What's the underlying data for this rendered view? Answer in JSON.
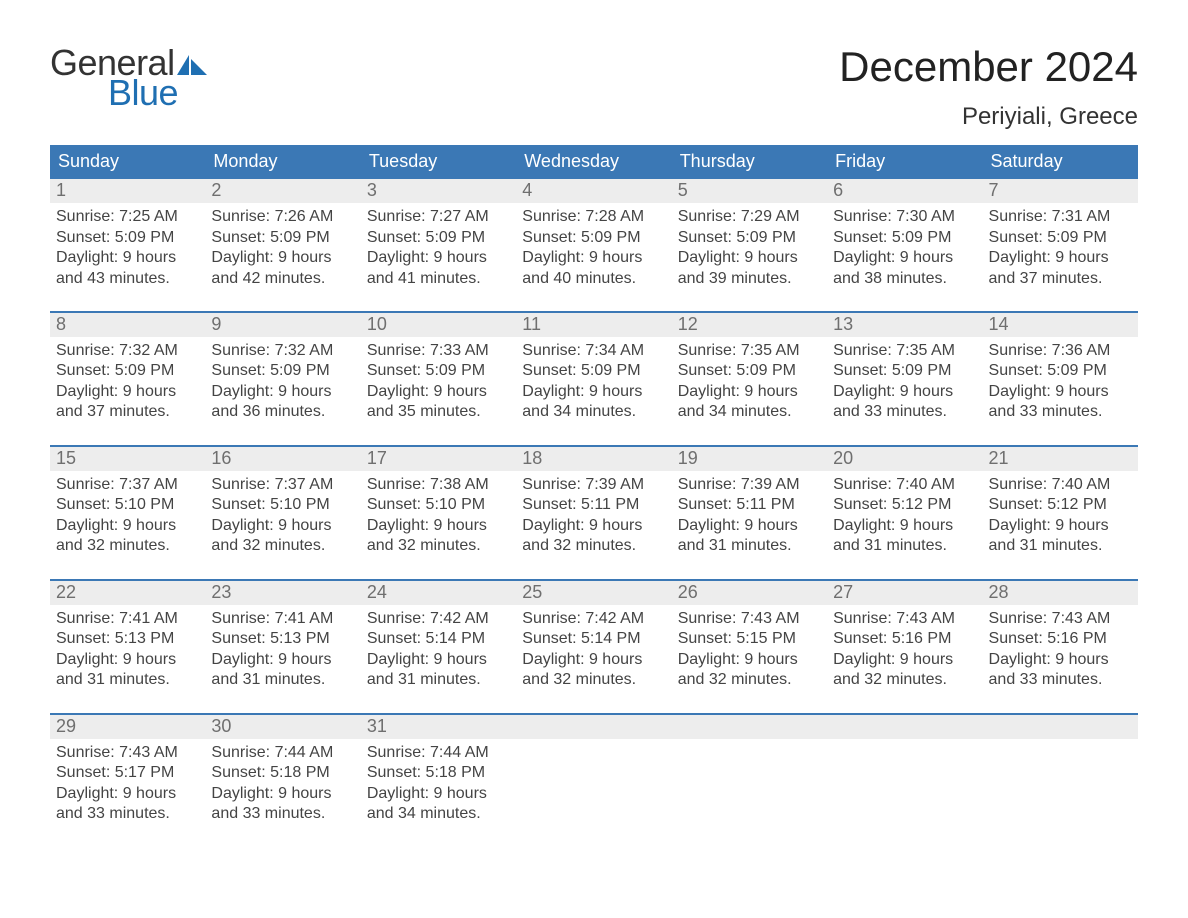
{
  "logo": {
    "general": "General",
    "blue": "Blue"
  },
  "title": "December 2024",
  "location": "Periyiali, Greece",
  "colors": {
    "header_bg": "#3b78b5",
    "header_text": "#ffffff",
    "daynum_bg": "#ededed",
    "daynum_text": "#6f6f6f",
    "body_text": "#444444",
    "week_border": "#3b78b5",
    "logo_blue": "#1f6fb2",
    "logo_dark": "#333333"
  },
  "weekday_labels": [
    "Sunday",
    "Monday",
    "Tuesday",
    "Wednesday",
    "Thursday",
    "Friday",
    "Saturday"
  ],
  "weeks": [
    {
      "days": [
        {
          "num": "1",
          "sunrise": "Sunrise: 7:25 AM",
          "sunset": "Sunset: 5:09 PM",
          "dl1": "Daylight: 9 hours",
          "dl2": "and 43 minutes."
        },
        {
          "num": "2",
          "sunrise": "Sunrise: 7:26 AM",
          "sunset": "Sunset: 5:09 PM",
          "dl1": "Daylight: 9 hours",
          "dl2": "and 42 minutes."
        },
        {
          "num": "3",
          "sunrise": "Sunrise: 7:27 AM",
          "sunset": "Sunset: 5:09 PM",
          "dl1": "Daylight: 9 hours",
          "dl2": "and 41 minutes."
        },
        {
          "num": "4",
          "sunrise": "Sunrise: 7:28 AM",
          "sunset": "Sunset: 5:09 PM",
          "dl1": "Daylight: 9 hours",
          "dl2": "and 40 minutes."
        },
        {
          "num": "5",
          "sunrise": "Sunrise: 7:29 AM",
          "sunset": "Sunset: 5:09 PM",
          "dl1": "Daylight: 9 hours",
          "dl2": "and 39 minutes."
        },
        {
          "num": "6",
          "sunrise": "Sunrise: 7:30 AM",
          "sunset": "Sunset: 5:09 PM",
          "dl1": "Daylight: 9 hours",
          "dl2": "and 38 minutes."
        },
        {
          "num": "7",
          "sunrise": "Sunrise: 7:31 AM",
          "sunset": "Sunset: 5:09 PM",
          "dl1": "Daylight: 9 hours",
          "dl2": "and 37 minutes."
        }
      ]
    },
    {
      "days": [
        {
          "num": "8",
          "sunrise": "Sunrise: 7:32 AM",
          "sunset": "Sunset: 5:09 PM",
          "dl1": "Daylight: 9 hours",
          "dl2": "and 37 minutes."
        },
        {
          "num": "9",
          "sunrise": "Sunrise: 7:32 AM",
          "sunset": "Sunset: 5:09 PM",
          "dl1": "Daylight: 9 hours",
          "dl2": "and 36 minutes."
        },
        {
          "num": "10",
          "sunrise": "Sunrise: 7:33 AM",
          "sunset": "Sunset: 5:09 PM",
          "dl1": "Daylight: 9 hours",
          "dl2": "and 35 minutes."
        },
        {
          "num": "11",
          "sunrise": "Sunrise: 7:34 AM",
          "sunset": "Sunset: 5:09 PM",
          "dl1": "Daylight: 9 hours",
          "dl2": "and 34 minutes."
        },
        {
          "num": "12",
          "sunrise": "Sunrise: 7:35 AM",
          "sunset": "Sunset: 5:09 PM",
          "dl1": "Daylight: 9 hours",
          "dl2": "and 34 minutes."
        },
        {
          "num": "13",
          "sunrise": "Sunrise: 7:35 AM",
          "sunset": "Sunset: 5:09 PM",
          "dl1": "Daylight: 9 hours",
          "dl2": "and 33 minutes."
        },
        {
          "num": "14",
          "sunrise": "Sunrise: 7:36 AM",
          "sunset": "Sunset: 5:09 PM",
          "dl1": "Daylight: 9 hours",
          "dl2": "and 33 minutes."
        }
      ]
    },
    {
      "days": [
        {
          "num": "15",
          "sunrise": "Sunrise: 7:37 AM",
          "sunset": "Sunset: 5:10 PM",
          "dl1": "Daylight: 9 hours",
          "dl2": "and 32 minutes."
        },
        {
          "num": "16",
          "sunrise": "Sunrise: 7:37 AM",
          "sunset": "Sunset: 5:10 PM",
          "dl1": "Daylight: 9 hours",
          "dl2": "and 32 minutes."
        },
        {
          "num": "17",
          "sunrise": "Sunrise: 7:38 AM",
          "sunset": "Sunset: 5:10 PM",
          "dl1": "Daylight: 9 hours",
          "dl2": "and 32 minutes."
        },
        {
          "num": "18",
          "sunrise": "Sunrise: 7:39 AM",
          "sunset": "Sunset: 5:11 PM",
          "dl1": "Daylight: 9 hours",
          "dl2": "and 32 minutes."
        },
        {
          "num": "19",
          "sunrise": "Sunrise: 7:39 AM",
          "sunset": "Sunset: 5:11 PM",
          "dl1": "Daylight: 9 hours",
          "dl2": "and 31 minutes."
        },
        {
          "num": "20",
          "sunrise": "Sunrise: 7:40 AM",
          "sunset": "Sunset: 5:12 PM",
          "dl1": "Daylight: 9 hours",
          "dl2": "and 31 minutes."
        },
        {
          "num": "21",
          "sunrise": "Sunrise: 7:40 AM",
          "sunset": "Sunset: 5:12 PM",
          "dl1": "Daylight: 9 hours",
          "dl2": "and 31 minutes."
        }
      ]
    },
    {
      "days": [
        {
          "num": "22",
          "sunrise": "Sunrise: 7:41 AM",
          "sunset": "Sunset: 5:13 PM",
          "dl1": "Daylight: 9 hours",
          "dl2": "and 31 minutes."
        },
        {
          "num": "23",
          "sunrise": "Sunrise: 7:41 AM",
          "sunset": "Sunset: 5:13 PM",
          "dl1": "Daylight: 9 hours",
          "dl2": "and 31 minutes."
        },
        {
          "num": "24",
          "sunrise": "Sunrise: 7:42 AM",
          "sunset": "Sunset: 5:14 PM",
          "dl1": "Daylight: 9 hours",
          "dl2": "and 31 minutes."
        },
        {
          "num": "25",
          "sunrise": "Sunrise: 7:42 AM",
          "sunset": "Sunset: 5:14 PM",
          "dl1": "Daylight: 9 hours",
          "dl2": "and 32 minutes."
        },
        {
          "num": "26",
          "sunrise": "Sunrise: 7:43 AM",
          "sunset": "Sunset: 5:15 PM",
          "dl1": "Daylight: 9 hours",
          "dl2": "and 32 minutes."
        },
        {
          "num": "27",
          "sunrise": "Sunrise: 7:43 AM",
          "sunset": "Sunset: 5:16 PM",
          "dl1": "Daylight: 9 hours",
          "dl2": "and 32 minutes."
        },
        {
          "num": "28",
          "sunrise": "Sunrise: 7:43 AM",
          "sunset": "Sunset: 5:16 PM",
          "dl1": "Daylight: 9 hours",
          "dl2": "and 33 minutes."
        }
      ]
    },
    {
      "days": [
        {
          "num": "29",
          "sunrise": "Sunrise: 7:43 AM",
          "sunset": "Sunset: 5:17 PM",
          "dl1": "Daylight: 9 hours",
          "dl2": "and 33 minutes."
        },
        {
          "num": "30",
          "sunrise": "Sunrise: 7:44 AM",
          "sunset": "Sunset: 5:18 PM",
          "dl1": "Daylight: 9 hours",
          "dl2": "and 33 minutes."
        },
        {
          "num": "31",
          "sunrise": "Sunrise: 7:44 AM",
          "sunset": "Sunset: 5:18 PM",
          "dl1": "Daylight: 9 hours",
          "dl2": "and 34 minutes."
        },
        {
          "num": "",
          "sunrise": "",
          "sunset": "",
          "dl1": "",
          "dl2": ""
        },
        {
          "num": "",
          "sunrise": "",
          "sunset": "",
          "dl1": "",
          "dl2": ""
        },
        {
          "num": "",
          "sunrise": "",
          "sunset": "",
          "dl1": "",
          "dl2": ""
        },
        {
          "num": "",
          "sunrise": "",
          "sunset": "",
          "dl1": "",
          "dl2": ""
        }
      ]
    }
  ]
}
